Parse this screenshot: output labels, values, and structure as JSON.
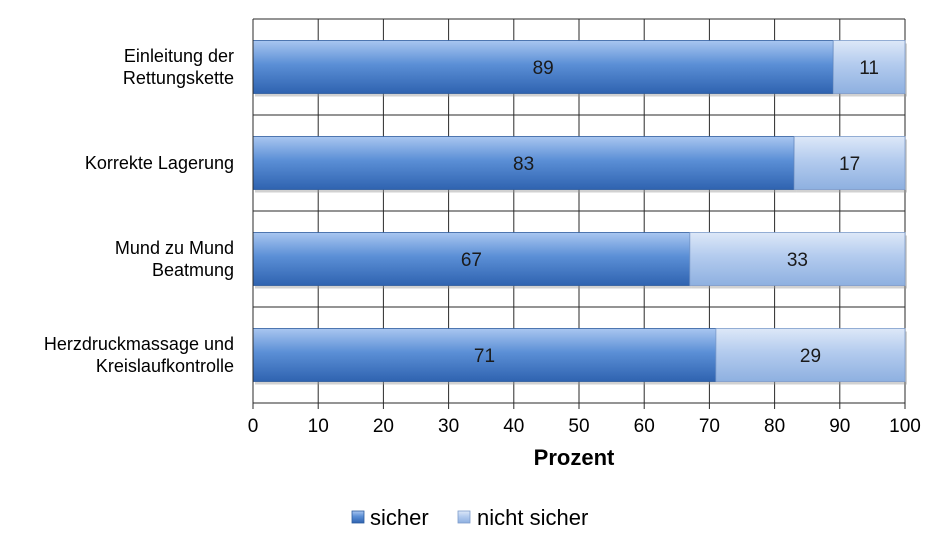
{
  "chart_data": {
    "type": "bar",
    "orientation": "horizontal",
    "stacked": true,
    "categories": [
      [
        "Einleitung der",
        "Rettungskette"
      ],
      [
        "Korrekte Lagerung"
      ],
      [
        "Mund zu Mund",
        "Beatmung"
      ],
      [
        "Herzdruckmassage und",
        "Kreislaufkontrolle"
      ]
    ],
    "series": [
      {
        "name": "sicher",
        "values": [
          89,
          83,
          67,
          71
        ],
        "color": "#4a7fc9"
      },
      {
        "name": "nicht sicher",
        "values": [
          11,
          17,
          33,
          29
        ],
        "color": "#a9c4ea"
      }
    ],
    "xlabel": "Prozent",
    "xlim": [
      0,
      100
    ],
    "xticks": [
      0,
      10,
      20,
      30,
      40,
      50,
      60,
      70,
      80,
      90,
      100
    ],
    "grid": true,
    "legend": "bottom"
  }
}
